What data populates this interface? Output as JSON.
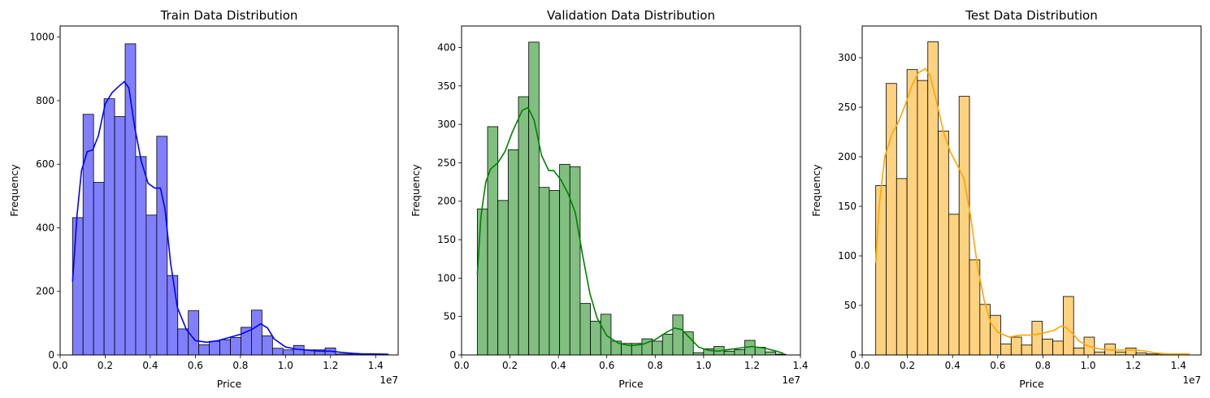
{
  "chart_data": [
    {
      "type": "histogram",
      "title": "Train Data Distribution",
      "xlabel": "Price",
      "ylabel": "Frequency",
      "x_offset_label": "1e7",
      "xlim": [
        0.0,
        1.5
      ],
      "ylim": [
        0,
        1035
      ],
      "xticks": [
        0.0,
        0.2,
        0.4,
        0.6,
        0.8,
        1.0,
        1.2,
        1.4
      ],
      "xtick_labels": [
        "0.0",
        "0.2",
        "0.4",
        "0.6",
        "0.8",
        "1.0",
        "1.2",
        "1.4"
      ],
      "yticks": [
        0,
        200,
        400,
        600,
        800,
        1000
      ],
      "ytick_labels": [
        "0",
        "200",
        "400",
        "600",
        "800",
        "1000"
      ],
      "bin_start": 0.055,
      "bin_width": 0.0467,
      "color": "#0000ff",
      "fill_color": "#8080ff",
      "counts": [
        432,
        757,
        543,
        806,
        750,
        979,
        624,
        440,
        688,
        250,
        82,
        139,
        32,
        43,
        48,
        55,
        87,
        141,
        60,
        21,
        16,
        30,
        16,
        16,
        22,
        3,
        3,
        3,
        3,
        3
      ],
      "kde": [
        [
          0.055,
          230
        ],
        [
          0.075,
          440
        ],
        [
          0.095,
          580
        ],
        [
          0.12,
          640
        ],
        [
          0.145,
          645
        ],
        [
          0.17,
          690
        ],
        [
          0.2,
          790
        ],
        [
          0.23,
          825
        ],
        [
          0.26,
          845
        ],
        [
          0.285,
          860
        ],
        [
          0.305,
          840
        ],
        [
          0.33,
          720
        ],
        [
          0.36,
          610
        ],
        [
          0.39,
          540
        ],
        [
          0.42,
          525
        ],
        [
          0.445,
          525
        ],
        [
          0.465,
          460
        ],
        [
          0.49,
          290
        ],
        [
          0.52,
          150
        ],
        [
          0.56,
          80
        ],
        [
          0.6,
          45
        ],
        [
          0.65,
          40
        ],
        [
          0.7,
          45
        ],
        [
          0.75,
          55
        ],
        [
          0.8,
          65
        ],
        [
          0.85,
          80
        ],
        [
          0.89,
          98
        ],
        [
          0.92,
          85
        ],
        [
          0.95,
          50
        ],
        [
          1.0,
          25
        ],
        [
          1.05,
          18
        ],
        [
          1.1,
          15
        ],
        [
          1.15,
          12
        ],
        [
          1.2,
          12
        ],
        [
          1.25,
          8
        ],
        [
          1.3,
          5
        ],
        [
          1.35,
          3
        ],
        [
          1.4,
          3
        ],
        [
          1.45,
          2
        ]
      ]
    },
    {
      "type": "histogram",
      "title": "Validation Data Distribution",
      "xlabel": "Price",
      "ylabel": "Frequency",
      "x_offset_label": "1e7",
      "xlim": [
        0.0,
        1.4
      ],
      "ylim": [
        0,
        428
      ],
      "xticks": [
        0.0,
        0.2,
        0.4,
        0.6,
        0.8,
        1.0,
        1.2,
        1.4
      ],
      "xtick_labels": [
        "0.0",
        "0.2",
        "0.4",
        "0.6",
        "0.8",
        "1.0",
        "1.2",
        "1.4"
      ],
      "yticks": [
        0,
        50,
        100,
        150,
        200,
        250,
        300,
        350,
        400
      ],
      "ytick_labels": [
        "0",
        "50",
        "100",
        "150",
        "200",
        "250",
        "300",
        "350",
        "400"
      ],
      "bin_start": 0.065,
      "bin_width": 0.0425,
      "color": "#008000",
      "fill_color": "#80bf80",
      "counts": [
        190,
        297,
        201,
        267,
        336,
        407,
        218,
        214,
        248,
        245,
        67,
        44,
        53,
        18,
        15,
        15,
        21,
        18,
        27,
        52,
        30,
        3,
        8,
        11,
        5,
        7,
        19,
        10,
        4,
        1
      ],
      "kde": [
        [
          0.065,
          105
        ],
        [
          0.08,
          180
        ],
        [
          0.1,
          225
        ],
        [
          0.12,
          242
        ],
        [
          0.15,
          250
        ],
        [
          0.18,
          265
        ],
        [
          0.21,
          290
        ],
        [
          0.25,
          318
        ],
        [
          0.275,
          322
        ],
        [
          0.3,
          305
        ],
        [
          0.33,
          260
        ],
        [
          0.36,
          240
        ],
        [
          0.38,
          240
        ],
        [
          0.41,
          228
        ],
        [
          0.44,
          210
        ],
        [
          0.47,
          185
        ],
        [
          0.5,
          130
        ],
        [
          0.53,
          80
        ],
        [
          0.56,
          48
        ],
        [
          0.6,
          25
        ],
        [
          0.65,
          15
        ],
        [
          0.7,
          12
        ],
        [
          0.75,
          14
        ],
        [
          0.8,
          20
        ],
        [
          0.85,
          30
        ],
        [
          0.88,
          35
        ],
        [
          0.91,
          33
        ],
        [
          0.94,
          23
        ],
        [
          0.98,
          10
        ],
        [
          1.02,
          6
        ],
        [
          1.06,
          5
        ],
        [
          1.1,
          7
        ],
        [
          1.15,
          9
        ],
        [
          1.2,
          11
        ],
        [
          1.25,
          9
        ],
        [
          1.3,
          5
        ],
        [
          1.33,
          2
        ]
      ]
    },
    {
      "type": "histogram",
      "title": "Test Data Distribution",
      "xlabel": "Price",
      "ylabel": "Frequency",
      "x_offset_label": "1e7",
      "xlim": [
        0.0,
        1.5
      ],
      "ylim": [
        0,
        332
      ],
      "xticks": [
        0.0,
        0.2,
        0.4,
        0.6,
        0.8,
        1.0,
        1.2,
        1.4
      ],
      "xtick_labels": [
        "0.0",
        "0.2",
        "0.4",
        "0.6",
        "0.8",
        "1.0",
        "1.2",
        "1.4"
      ],
      "yticks": [
        0,
        50,
        100,
        150,
        200,
        250,
        300
      ],
      "ytick_labels": [
        "0",
        "50",
        "100",
        "150",
        "200",
        "250",
        "300"
      ],
      "bin_start": 0.06,
      "bin_width": 0.0461,
      "color": "#ffa500",
      "fill_color": "#ffd280",
      "counts": [
        171,
        274,
        178,
        288,
        277,
        316,
        226,
        142,
        261,
        96,
        51,
        40,
        11,
        18,
        10,
        34,
        16,
        14,
        59,
        7,
        18,
        3,
        11,
        3,
        7,
        2,
        1,
        1,
        1,
        1
      ],
      "kde": [
        [
          0.06,
          93
        ],
        [
          0.075,
          150
        ],
        [
          0.1,
          200
        ],
        [
          0.13,
          222
        ],
        [
          0.16,
          235
        ],
        [
          0.19,
          252
        ],
        [
          0.22,
          272
        ],
        [
          0.25,
          285
        ],
        [
          0.28,
          289
        ],
        [
          0.3,
          282
        ],
        [
          0.33,
          255
        ],
        [
          0.36,
          225
        ],
        [
          0.39,
          205
        ],
        [
          0.42,
          192
        ],
        [
          0.45,
          178
        ],
        [
          0.48,
          140
        ],
        [
          0.51,
          90
        ],
        [
          0.54,
          55
        ],
        [
          0.57,
          32
        ],
        [
          0.6,
          23
        ],
        [
          0.65,
          18
        ],
        [
          0.7,
          20
        ],
        [
          0.75,
          20
        ],
        [
          0.8,
          22
        ],
        [
          0.85,
          25
        ],
        [
          0.88,
          29
        ],
        [
          0.9,
          28
        ],
        [
          0.93,
          22
        ],
        [
          0.96,
          14
        ],
        [
          1.0,
          9
        ],
        [
          1.05,
          6
        ],
        [
          1.1,
          5
        ],
        [
          1.15,
          5
        ],
        [
          1.2,
          5
        ],
        [
          1.25,
          4
        ],
        [
          1.3,
          2
        ],
        [
          1.35,
          1
        ],
        [
          1.45,
          1
        ]
      ]
    }
  ]
}
